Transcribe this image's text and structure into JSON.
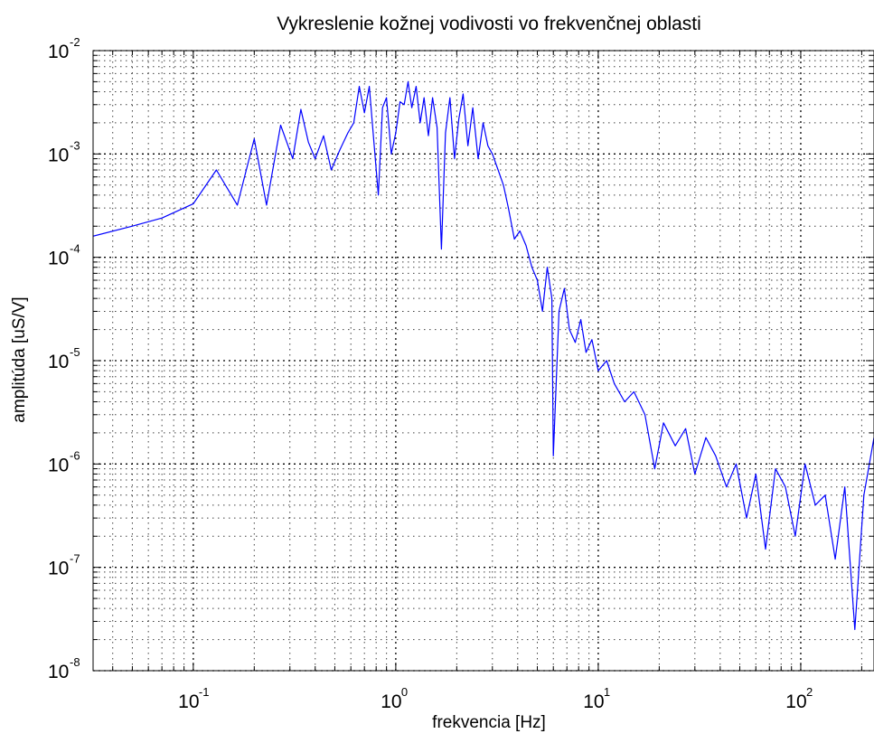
{
  "chart_data": {
    "type": "line",
    "title": "Vykreslenie kožnej vodivosti vo frekvenčnej oblasti",
    "xlabel": "frekvencia [Hz]",
    "ylabel": "amplitúda [uS/V]",
    "xscale": "log",
    "yscale": "log",
    "xlim": [
      0.032,
      230
    ],
    "ylim": [
      1e-08,
      0.01
    ],
    "grid": true,
    "minor_grid": true,
    "x_ticks": [
      {
        "base": "10",
        "exp": "-1",
        "value": 0.1
      },
      {
        "base": "10",
        "exp": "0",
        "value": 1
      },
      {
        "base": "10",
        "exp": "1",
        "value": 10
      },
      {
        "base": "10",
        "exp": "2",
        "value": 100
      }
    ],
    "y_ticks": [
      {
        "base": "10",
        "exp": "-2",
        "value": 0.01
      },
      {
        "base": "10",
        "exp": "-3",
        "value": 0.001
      },
      {
        "base": "10",
        "exp": "-4",
        "value": 0.0001
      },
      {
        "base": "10",
        "exp": "-5",
        "value": 1e-05
      },
      {
        "base": "10",
        "exp": "-6",
        "value": 1e-06
      },
      {
        "base": "10",
        "exp": "-7",
        "value": 1e-07
      },
      {
        "base": "10",
        "exp": "-8",
        "value": 1e-08
      }
    ],
    "colors": {
      "series": "#0000ff",
      "axes": "#000000"
    },
    "series": [
      {
        "name": "",
        "x": [
          0.032,
          0.05,
          0.07,
          0.1,
          0.13,
          0.165,
          0.2,
          0.23,
          0.27,
          0.31,
          0.34,
          0.37,
          0.4,
          0.44,
          0.48,
          0.53,
          0.58,
          0.62,
          0.66,
          0.7,
          0.74,
          0.78,
          0.82,
          0.86,
          0.9,
          0.95,
          1.0,
          1.05,
          1.1,
          1.15,
          1.2,
          1.26,
          1.32,
          1.38,
          1.45,
          1.52,
          1.6,
          1.68,
          1.76,
          1.85,
          1.95,
          2.05,
          2.15,
          2.27,
          2.4,
          2.55,
          2.7,
          2.85,
          3.0,
          3.2,
          3.4,
          3.6,
          3.85,
          4.1,
          4.4,
          4.7,
          5.0,
          5.3,
          5.6,
          5.9,
          6.0,
          6.4,
          6.8,
          7.2,
          7.7,
          8.2,
          8.7,
          9.3,
          10.0,
          11.0,
          12.0,
          13.5,
          15.0,
          17.0,
          19.0,
          21.0,
          24.0,
          27.0,
          30.0,
          34.0,
          38.0,
          43.0,
          48.0,
          54.0,
          60.0,
          67.0,
          75.0,
          84.0,
          94.0,
          105.0,
          118.0,
          132.0,
          148.0,
          165.0,
          185.0,
          205.0,
          230.0
        ],
        "y": [
          0.00016,
          0.0002,
          0.00024,
          0.00033,
          0.0007,
          0.00032,
          0.0014,
          0.00032,
          0.0019,
          0.0009,
          0.0027,
          0.0013,
          0.0009,
          0.0015,
          0.0007,
          0.0011,
          0.0016,
          0.002,
          0.0045,
          0.0025,
          0.0045,
          0.0013,
          0.0004,
          0.0028,
          0.0035,
          0.001,
          0.0016,
          0.0032,
          0.003,
          0.005,
          0.0028,
          0.0045,
          0.002,
          0.0035,
          0.0015,
          0.0035,
          0.0018,
          0.00012,
          0.0016,
          0.0035,
          0.0009,
          0.0022,
          0.0038,
          0.0012,
          0.0028,
          0.0009,
          0.002,
          0.0012,
          0.001,
          0.0007,
          0.0005,
          0.0003,
          0.00015,
          0.00018,
          0.00013,
          8e-05,
          6e-05,
          3e-05,
          8e-05,
          4e-05,
          1.2e-06,
          3e-05,
          5e-05,
          2e-05,
          1.5e-05,
          2.5e-05,
          1.2e-05,
          1.6e-05,
          8e-06,
          1e-05,
          6e-06,
          4e-06,
          5e-06,
          3e-06,
          9e-07,
          2.5e-06,
          1.5e-06,
          2.2e-06,
          8e-07,
          1.8e-06,
          1.2e-06,
          6e-07,
          1e-06,
          3e-07,
          8e-07,
          1.5e-07,
          9e-07,
          6e-07,
          2e-07,
          1e-06,
          4e-07,
          5e-07,
          1.2e-07,
          6e-07,
          2.5e-08,
          5e-07,
          1.8e-06
        ]
      }
    ]
  }
}
